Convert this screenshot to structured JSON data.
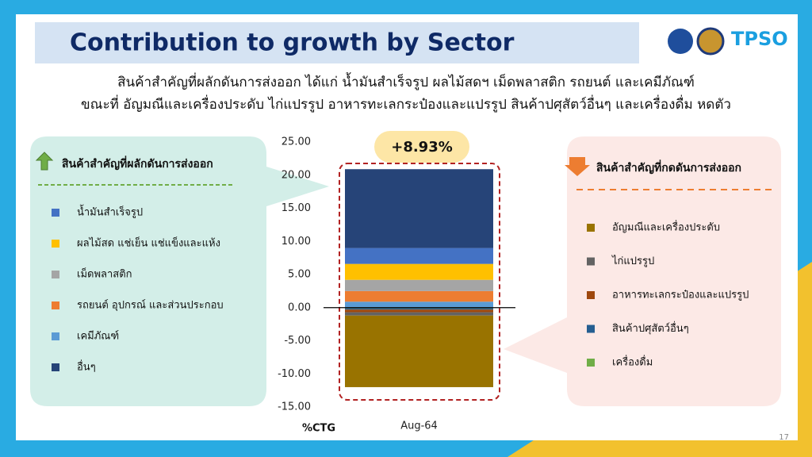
{
  "header": {
    "title": "Contribution to growth by Sector",
    "logo_text": "TPSO",
    "page_number": "17"
  },
  "subtitle": [
    "สินค้าสำคัญที่ผลักดันการส่งออก ได้แก่ น้ำมันสำเร็จรูป ผลไม้สดฯ เม็ดพลาสติก รถยนต์ และเคมีภัณฑ์",
    "ขณะที่ อัญมณีและเครื่องประดับ ไก่แปรรูป อาหารทะเลกระป๋องและแปรรูป สินค้าปศุสัตว์อื่นๆ และเครื่องดื่ม หดตัว"
  ],
  "callouts": {
    "positive_title": "สินค้าสำคัญที่ผลักดันการส่งออก",
    "negative_title": "สินค้าสำคัญที่กดดันการส่งออก"
  },
  "chart_data": {
    "type": "stacked_bar",
    "categories": [
      "Aug-64"
    ],
    "y_axis_label": "%CTG",
    "total_label": "+8.93%",
    "ylim": [
      -15,
      25
    ],
    "yticks": [
      {
        "value": 25,
        "label": "25.00"
      },
      {
        "value": 20,
        "label": "20.00"
      },
      {
        "value": 15,
        "label": "15.00"
      },
      {
        "value": 10,
        "label": "10.00"
      },
      {
        "value": 5,
        "label": "5.00"
      },
      {
        "value": 0,
        "label": "0.00"
      },
      {
        "value": -5,
        "label": "-5.00"
      },
      {
        "value": -10,
        "label": "-10.00"
      },
      {
        "value": -15,
        "label": "-15.00"
      }
    ],
    "series": [
      {
        "name": "น้ำมันสำเร็จรูป",
        "color": "#4472c4",
        "values": [
          2.4
        ]
      },
      {
        "name": "ผลไม้สด แช่เย็น แช่แข็งและแห้ง",
        "color": "#ffc000",
        "values": [
          2.4
        ]
      },
      {
        "name": "เม็ดพลาสติก",
        "color": "#a5a5a5",
        "values": [
          1.7
        ]
      },
      {
        "name": "รถยนต์ อุปกรณ์ และส่วนประกอบ",
        "color": "#ed7d31",
        "values": [
          1.6
        ]
      },
      {
        "name": "เคมีภัณฑ์",
        "color": "#5b9bd5",
        "values": [
          0.9
        ]
      },
      {
        "name": "อื่นๆ",
        "color": "#264478",
        "values": [
          11.9
        ]
      },
      {
        "name": "อัญมณีและเครื่องประดับ",
        "color": "#997300",
        "values": [
          -10.8
        ]
      },
      {
        "name": "ไก่แปรรูป",
        "color": "#636363",
        "values": [
          -0.5
        ]
      },
      {
        "name": "อาหารทะเลกระป๋องและแปรรูป",
        "color": "#9e480e",
        "values": [
          -0.4
        ]
      },
      {
        "name": "สินค้าปศุสัตว์อื่นๆ",
        "color": "#255e91",
        "values": [
          -0.2
        ]
      },
      {
        "name": "เครื่องดื่ม",
        "color": "#70ad47",
        "values": [
          -0.1
        ]
      }
    ]
  }
}
